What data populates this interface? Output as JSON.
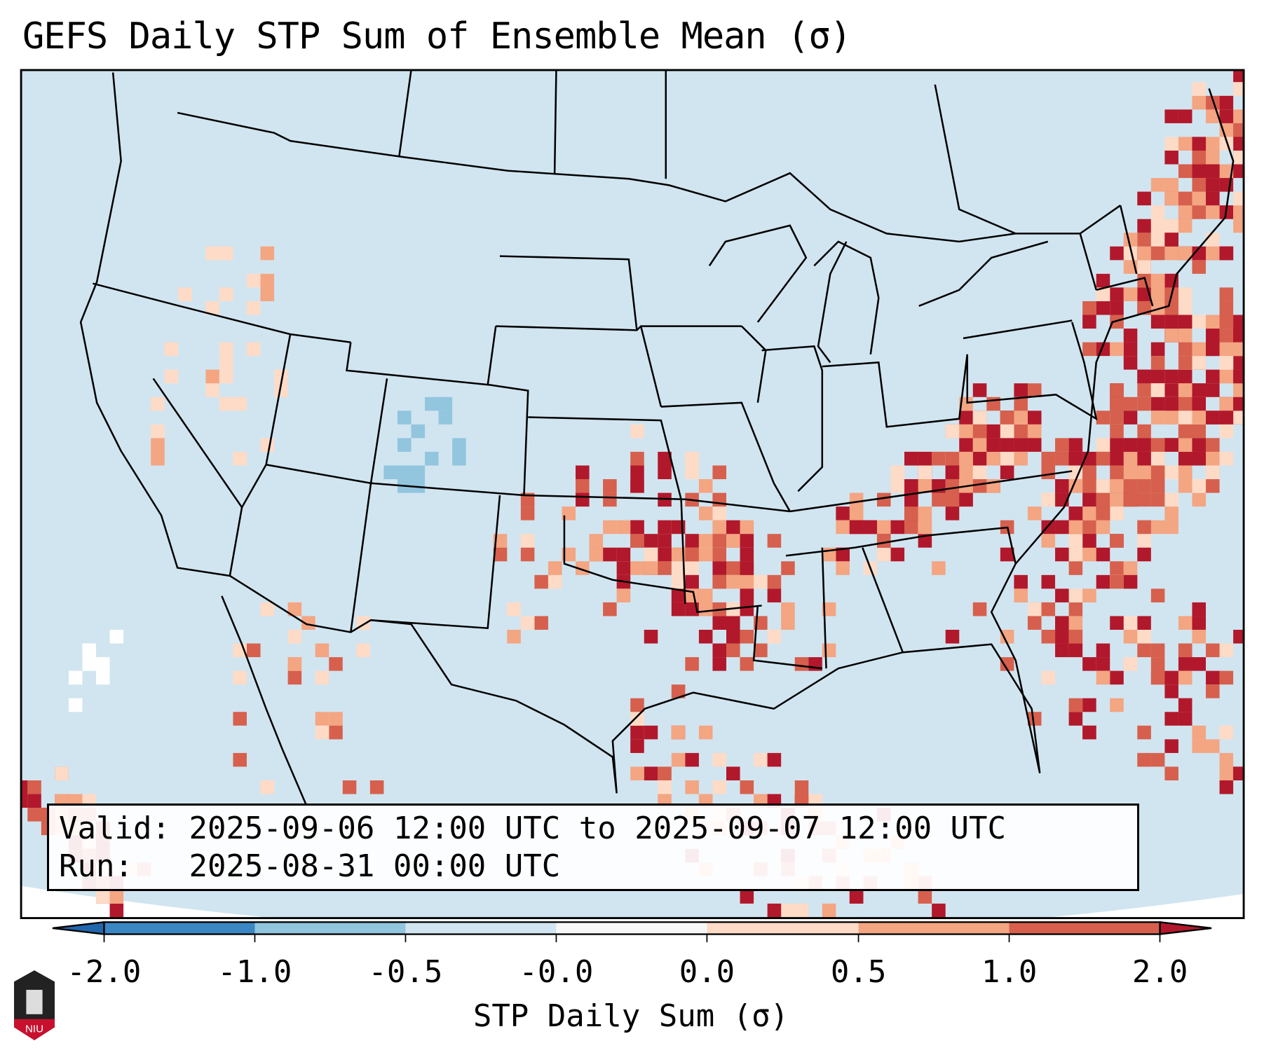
{
  "title": "GEFS Daily STP Sum of Ensemble Mean (σ)",
  "info": {
    "valid_label": "Valid:",
    "valid_value": "2025-09-06 12:00 UTC to 2025-09-07 12:00 UTC",
    "run_label": "Run:",
    "run_value": "2025-08-31 00:00 UTC"
  },
  "colorbar": {
    "label": "STP Daily Sum (σ)",
    "ticks": [
      "-2.0",
      "-1.0",
      "-0.5",
      "-0.0",
      "0.0",
      "0.5",
      "1.0",
      "2.0"
    ],
    "colors": [
      "#3a87c3",
      "#92c5de",
      "#d1e5f0",
      "#f7f7f7",
      "#fddbc7",
      "#f4a582",
      "#d6604d"
    ],
    "under_color": "#2166ac",
    "over_color": "#b2182b"
  },
  "map": {
    "background": "#d1e5f0",
    "extent": "Continental United States"
  },
  "logo": {
    "text": "NIU"
  }
}
